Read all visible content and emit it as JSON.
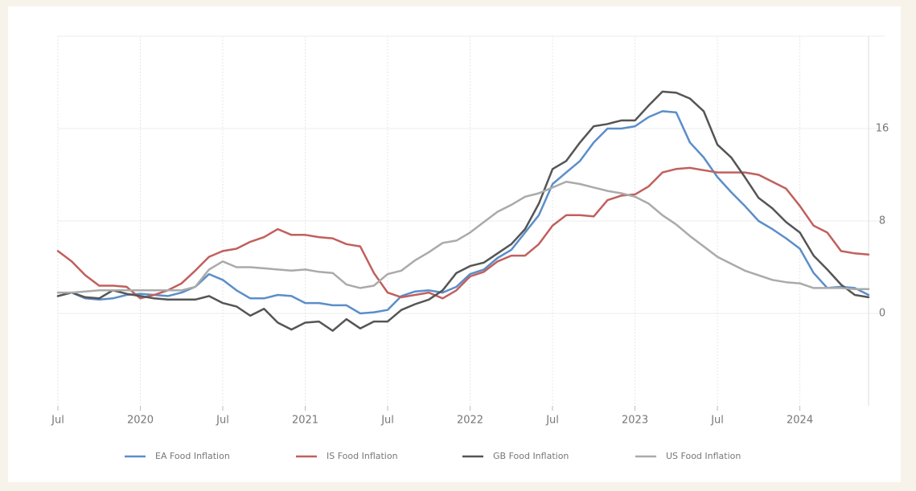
{
  "chart_data": {
    "type": "line",
    "categories": [
      "Jul",
      null,
      null,
      null,
      null,
      null,
      "2020",
      null,
      null,
      null,
      null,
      null,
      "Jul",
      null,
      null,
      null,
      null,
      null,
      "2021",
      null,
      null,
      null,
      null,
      null,
      "Jul",
      null,
      null,
      null,
      null,
      null,
      "2022",
      null,
      null,
      null,
      null,
      null,
      "Jul",
      null,
      null,
      null,
      null,
      null,
      "2023",
      null,
      null,
      null,
      null,
      null,
      "Jul",
      null,
      null,
      null,
      null,
      null,
      "2024",
      null,
      null,
      null,
      null,
      null
    ],
    "series": [
      {
        "name": "EA Food Inflation",
        "color": "#5b8ec9",
        "values": [
          1.5,
          1.8,
          1.3,
          1.2,
          1.3,
          1.6,
          1.7,
          1.6,
          1.5,
          1.8,
          2.3,
          3.4,
          2.9,
          2.0,
          1.3,
          1.3,
          1.6,
          1.5,
          0.9,
          0.9,
          0.7,
          0.7,
          0.0,
          0.1,
          0.3,
          1.5,
          1.9,
          2.0,
          1.8,
          2.3,
          3.4,
          3.8,
          4.8,
          5.5,
          7.0,
          8.5,
          11.2,
          12.2,
          13.2,
          14.8,
          16.0,
          16.0,
          16.2,
          17.0,
          17.5,
          17.4,
          14.8,
          13.5,
          11.8,
          10.5,
          9.3,
          8.0,
          7.3,
          6.5,
          5.6,
          3.5,
          2.2,
          2.3,
          2.2,
          1.6
        ]
      },
      {
        "name": "IS Food Inflation",
        "color": "#c0605e",
        "values": [
          5.4,
          4.5,
          3.3,
          2.4,
          2.4,
          2.3,
          1.3,
          1.6,
          2.0,
          2.6,
          3.7,
          4.9,
          5.4,
          5.6,
          6.2,
          6.6,
          7.3,
          6.8,
          6.8,
          6.6,
          6.5,
          6.0,
          5.8,
          3.5,
          1.8,
          1.4,
          1.6,
          1.8,
          1.3,
          2.0,
          3.2,
          3.6,
          4.5,
          5.0,
          5.0,
          6.0,
          7.6,
          8.5,
          8.5,
          8.4,
          9.8,
          10.2,
          10.3,
          11.0,
          12.2,
          12.5,
          12.6,
          12.4,
          12.2,
          12.2,
          12.2,
          12.0,
          11.4,
          10.8,
          9.3,
          7.6,
          7.0,
          5.4,
          5.2,
          5.1
        ]
      },
      {
        "name": "GB Food Inflation",
        "color": "#555555",
        "values": [
          1.5,
          1.8,
          1.4,
          1.3,
          2.0,
          1.7,
          1.5,
          1.3,
          1.2,
          1.2,
          1.2,
          1.5,
          0.9,
          0.6,
          -0.2,
          0.4,
          -0.8,
          -1.4,
          -0.8,
          -0.7,
          -1.5,
          -0.5,
          -1.3,
          -0.7,
          -0.7,
          0.3,
          0.8,
          1.2,
          2.0,
          3.5,
          4.1,
          4.4,
          5.2,
          6.0,
          7.3,
          9.5,
          12.5,
          13.2,
          14.8,
          16.2,
          16.4,
          16.7,
          16.7,
          18.0,
          19.2,
          19.1,
          18.6,
          17.5,
          14.6,
          13.5,
          11.8,
          10.0,
          9.1,
          7.9,
          7.0,
          5.0,
          3.8,
          2.5,
          1.6,
          1.4
        ]
      },
      {
        "name": "US Food Inflation",
        "color": "#aaaaaa",
        "values": [
          1.8,
          1.8,
          1.9,
          2.0,
          2.0,
          2.0,
          2.0,
          2.0,
          2.0,
          2.0,
          2.3,
          3.8,
          4.5,
          4.0,
          4.0,
          3.9,
          3.8,
          3.7,
          3.8,
          3.6,
          3.5,
          2.5,
          2.2,
          2.4,
          3.4,
          3.7,
          4.6,
          5.3,
          6.1,
          6.3,
          7.0,
          7.9,
          8.8,
          9.4,
          10.1,
          10.4,
          10.9,
          11.4,
          11.2,
          10.9,
          10.6,
          10.4,
          10.1,
          9.5,
          8.5,
          7.7,
          6.7,
          5.8,
          4.9,
          4.3,
          3.7,
          3.3,
          2.9,
          2.7,
          2.6,
          2.2,
          2.2,
          2.2,
          2.1,
          2.1
        ]
      }
    ],
    "ylim": [
      -8,
      24
    ],
    "yticks": [
      0,
      8,
      16
    ],
    "grid": true,
    "legend": "bottom"
  }
}
